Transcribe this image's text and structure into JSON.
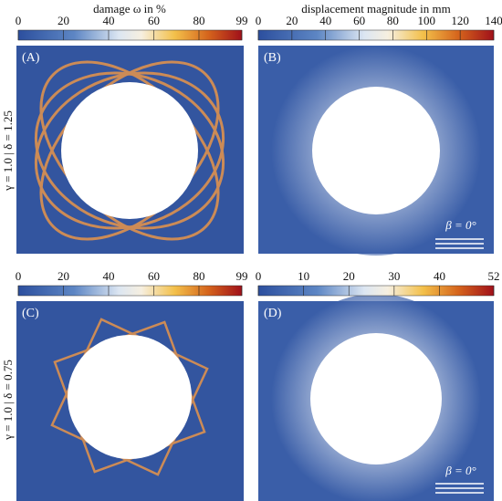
{
  "column_titles": [
    "damage ω in %",
    "displacement magnitude in mm"
  ],
  "row_labels": [
    "γ = 1.0 | δ = 1.25",
    "γ = 1.0 | δ = 0.75"
  ],
  "colorbars": [
    {
      "lim": [
        0,
        99
      ],
      "ticks": [
        0,
        20,
        40,
        60,
        80,
        99
      ]
    },
    {
      "lim": [
        0,
        140
      ],
      "ticks": [
        0,
        20,
        40,
        60,
        80,
        100,
        120,
        140
      ]
    },
    {
      "lim": [
        0,
        99
      ],
      "ticks": [
        0,
        20,
        40,
        60,
        80,
        99
      ]
    },
    {
      "lim": [
        0,
        52
      ],
      "ticks": [
        0,
        10,
        20,
        30,
        40,
        52
      ]
    }
  ],
  "panels": [
    {
      "label": "(A)"
    },
    {
      "label": "(B)",
      "annotation": "β = 0°"
    },
    {
      "label": "(C)"
    },
    {
      "label": "(D)",
      "annotation": "β = 0°"
    }
  ]
}
